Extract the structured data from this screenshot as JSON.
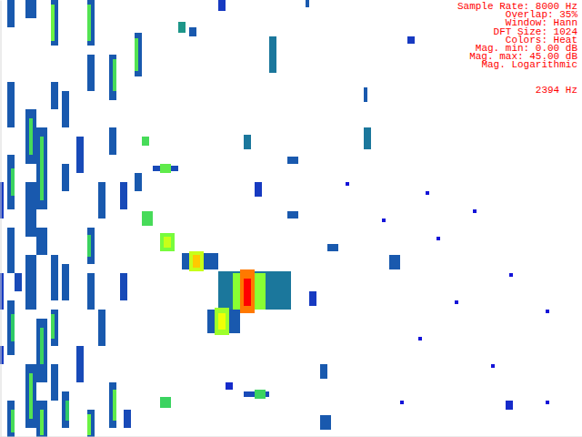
{
  "chart_data": {
    "type": "heatmap",
    "annotations": [
      "Sample Rate: 8000 Hz",
      "Overlap: 35%",
      "Window: Hann",
      "DFT Size: 1024",
      "Colors: Heat",
      "Mag. min: 0.00 dB",
      "Mag. max: 45.00 dB",
      "Mag. Logarithmic",
      "2394 Hz"
    ],
    "xlim": [
      0,
      4000
    ],
    "ylim": [
      0,
      480
    ],
    "xticks": [],
    "yticks": [],
    "tick_labels": false,
    "grid": false,
    "color_range": [
      0,
      45
    ],
    "color_ticks": [
      0,
      45
    ],
    "cells": [
      [
        50,
        100,
        0,
        30,
        18
      ],
      [
        50,
        100,
        90,
        140,
        18
      ],
      [
        50,
        100,
        170,
        230,
        18
      ],
      [
        75,
        100,
        185,
        215,
        27
      ],
      [
        50,
        100,
        250,
        300,
        18
      ],
      [
        50,
        100,
        330,
        390,
        18
      ],
      [
        75,
        100,
        345,
        375,
        26
      ],
      [
        50,
        100,
        440,
        480,
        18
      ],
      [
        75,
        100,
        450,
        475,
        28
      ],
      [
        175,
        250,
        0,
        20,
        18
      ],
      [
        175,
        250,
        120,
        180,
        18
      ],
      [
        200,
        225,
        130,
        170,
        28
      ],
      [
        175,
        250,
        200,
        260,
        18
      ],
      [
        175,
        250,
        280,
        340,
        18
      ],
      [
        175,
        250,
        400,
        470,
        18
      ],
      [
        200,
        225,
        410,
        460,
        29
      ],
      [
        250,
        325,
        140,
        230,
        18
      ],
      [
        275,
        300,
        150,
        220,
        28
      ],
      [
        250,
        325,
        250,
        280,
        18
      ],
      [
        250,
        325,
        350,
        420,
        18
      ],
      [
        275,
        300,
        360,
        400,
        27
      ],
      [
        250,
        325,
        440,
        480,
        18
      ],
      [
        275,
        300,
        450,
        478,
        30
      ],
      [
        350,
        400,
        0,
        50,
        18
      ],
      [
        350,
        375,
        5,
        45,
        31
      ],
      [
        350,
        400,
        90,
        120,
        18
      ],
      [
        350,
        400,
        280,
        330,
        18
      ],
      [
        350,
        400,
        340,
        380,
        18
      ],
      [
        350,
        375,
        345,
        372,
        28
      ],
      [
        350,
        400,
        400,
        440,
        18
      ],
      [
        425,
        475,
        100,
        140,
        18
      ],
      [
        425,
        475,
        180,
        210,
        18
      ],
      [
        425,
        475,
        290,
        330,
        18
      ],
      [
        425,
        475,
        430,
        470,
        18
      ],
      [
        450,
        475,
        440,
        462,
        26
      ],
      [
        600,
        650,
        0,
        50,
        18
      ],
      [
        600,
        625,
        5,
        45,
        29
      ],
      [
        600,
        650,
        60,
        100,
        18
      ],
      [
        600,
        650,
        250,
        290,
        18
      ],
      [
        600,
        625,
        258,
        282,
        27
      ],
      [
        600,
        650,
        300,
        340,
        18
      ],
      [
        600,
        650,
        450,
        480,
        18
      ],
      [
        600,
        625,
        455,
        478,
        31
      ],
      [
        675,
        725,
        200,
        240,
        18
      ],
      [
        675,
        725,
        340,
        380,
        18
      ],
      [
        750,
        800,
        60,
        110,
        18
      ],
      [
        775,
        800,
        65,
        100,
        28
      ],
      [
        750,
        800,
        140,
        170,
        18
      ],
      [
        750,
        800,
        420,
        470,
        18
      ],
      [
        775,
        800,
        428,
        462,
        30
      ],
      [
        925,
        975,
        36,
        84,
        18
      ],
      [
        925,
        950,
        42,
        78,
        29
      ],
      [
        925,
        975,
        190,
        210,
        18
      ],
      [
        0,
        25,
        200,
        240,
        16
      ],
      [
        0,
        25,
        300,
        340,
        16
      ],
      [
        0,
        25,
        380,
        400,
        16
      ],
      [
        825,
        875,
        200,
        230,
        17
      ],
      [
        825,
        875,
        300,
        330,
        17
      ],
      [
        100,
        150,
        300,
        320,
        17
      ],
      [
        525,
        575,
        150,
        190,
        17
      ],
      [
        525,
        575,
        380,
        420,
        17
      ],
      [
        850,
        900,
        450,
        470,
        17
      ],
      [
        975,
        1025,
        150,
        160,
        28
      ],
      [
        1050,
        1225,
        182,
        188,
        17
      ],
      [
        1100,
        1175,
        180,
        190,
        30
      ],
      [
        975,
        1050,
        232,
        248,
        28
      ],
      [
        1100,
        1200,
        256,
        276,
        32
      ],
      [
        1125,
        1175,
        260,
        272,
        36
      ],
      [
        1250,
        1500,
        278,
        296,
        18
      ],
      [
        1300,
        1400,
        276,
        298,
        36
      ],
      [
        1325,
        1375,
        280,
        294,
        40
      ],
      [
        1500,
        2000,
        298,
        340,
        20
      ],
      [
        1600,
        1825,
        300,
        340,
        33
      ],
      [
        1650,
        1750,
        296,
        344,
        42
      ],
      [
        1675,
        1725,
        306,
        336,
        45
      ],
      [
        1425,
        1650,
        340,
        366,
        18
      ],
      [
        1475,
        1575,
        338,
        368,
        34
      ],
      [
        1500,
        1550,
        344,
        362,
        38
      ],
      [
        1675,
        1850,
        430,
        436,
        17
      ],
      [
        1750,
        1825,
        428,
        438,
        27
      ],
      [
        1100,
        1175,
        436,
        448,
        27
      ],
      [
        1675,
        1725,
        148,
        164,
        20
      ],
      [
        1850,
        1900,
        40,
        80,
        20
      ],
      [
        2500,
        2550,
        140,
        164,
        20
      ],
      [
        1975,
        2050,
        172,
        180,
        18
      ],
      [
        1975,
        2050,
        232,
        240,
        18
      ],
      [
        2250,
        2325,
        268,
        276,
        18
      ],
      [
        2675,
        2750,
        280,
        296,
        18
      ],
      [
        2200,
        2250,
        400,
        416,
        18
      ],
      [
        2200,
        2275,
        456,
        472,
        18
      ],
      [
        2500,
        2525,
        96,
        112,
        18
      ],
      [
        2100,
        2125,
        0,
        8,
        18
      ],
      [
        1750,
        1800,
        200,
        216,
        16
      ],
      [
        2800,
        2850,
        40,
        48,
        16
      ],
      [
        2125,
        2175,
        320,
        336,
        16
      ],
      [
        3475,
        3525,
        440,
        450,
        15
      ],
      [
        1550,
        1600,
        420,
        428,
        15
      ],
      [
        1300,
        1350,
        30,
        40,
        18
      ],
      [
        1225,
        1275,
        24,
        36,
        22
      ],
      [
        1500,
        1550,
        0,
        12,
        16
      ],
      [
        2375,
        2400,
        200,
        204,
        12
      ],
      [
        2625,
        2650,
        240,
        244,
        12
      ],
      [
        3000,
        3025,
        260,
        264,
        12
      ],
      [
        3250,
        3275,
        230,
        234,
        12
      ],
      [
        3500,
        3525,
        300,
        304,
        12
      ],
      [
        3750,
        3775,
        340,
        344,
        12
      ],
      [
        2875,
        2900,
        370,
        374,
        12
      ],
      [
        3125,
        3150,
        330,
        334,
        12
      ],
      [
        3375,
        3400,
        400,
        404,
        12
      ],
      [
        2750,
        2775,
        440,
        444,
        12
      ],
      [
        3750,
        3775,
        440,
        444,
        12
      ],
      [
        2925,
        2950,
        210,
        214,
        12
      ]
    ]
  }
}
